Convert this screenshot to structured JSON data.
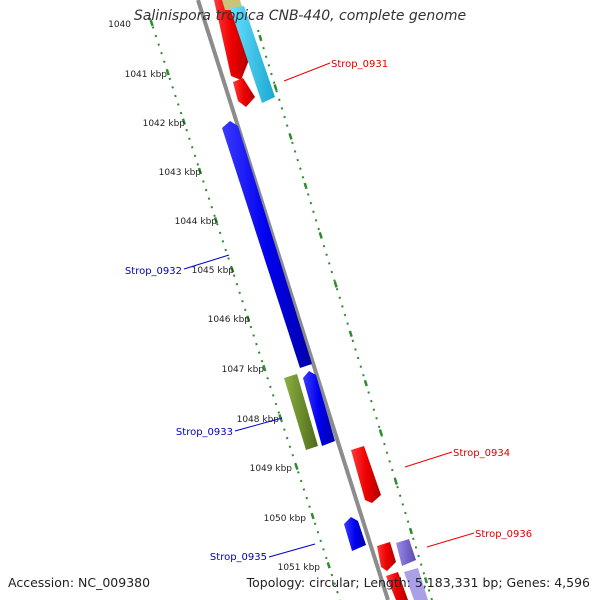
{
  "title": "Salinispora tropica CNB-440, complete genome",
  "footer": {
    "accession": "Accession: NC_009380",
    "topology": "Topology: circular; Length: 5,183,331 bp; Genes: 4,596"
  },
  "ticks": [
    "1040",
    "1041 kbp",
    "1042 kbp",
    "1043 kbp",
    "1044 kbp",
    "1045 kbp",
    "1046 kbp",
    "1047 kbp",
    "1048 kbp",
    "1049 kbp",
    "1050 kbp",
    "1051 kbp"
  ],
  "gene_labels": {
    "strop_0931": "Strop_0931",
    "strop_0932": "Strop_0932",
    "strop_0933": "Strop_0933",
    "strop_0934": "Strop_0934",
    "strop_0935": "Strop_0935",
    "strop_0936": "Strop_0936"
  },
  "colors": {
    "forward_red": "#ff0000",
    "reverse_blue": "#0000ee",
    "cyan": "#22ccee",
    "olive_green": "#6b8e23",
    "purple": "#7766cc",
    "khaki": "#c8c47a",
    "backbone": "#888888",
    "tick_green": "#2e8b2e"
  }
}
